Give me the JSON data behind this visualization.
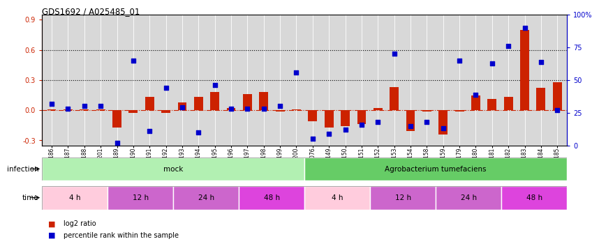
{
  "title": "GDS1692 / A025485_01",
  "samples": [
    "GSM94186",
    "GSM94187",
    "GSM94188",
    "GSM94201",
    "GSM94189",
    "GSM94190",
    "GSM94191",
    "GSM94192",
    "GSM94193",
    "GSM94194",
    "GSM94195",
    "GSM94196",
    "GSM94197",
    "GSM94198",
    "GSM94199",
    "GSM94200",
    "GSM94076",
    "GSM94149",
    "GSM94150",
    "GSM94151",
    "GSM94152",
    "GSM94153",
    "GSM94154",
    "GSM94158",
    "GSM94159",
    "GSM94179",
    "GSM94180",
    "GSM94181",
    "GSM94182",
    "GSM94183",
    "GSM94184",
    "GSM94185"
  ],
  "log2_ratio": [
    0.01,
    0.01,
    0.01,
    0.01,
    -0.17,
    -0.03,
    0.13,
    -0.03,
    0.08,
    0.13,
    0.18,
    0.02,
    0.16,
    0.18,
    -0.01,
    0.01,
    -0.11,
    -0.17,
    -0.16,
    -0.14,
    0.02,
    0.23,
    -0.21,
    -0.01,
    -0.24,
    -0.01,
    0.15,
    0.11,
    0.13,
    0.8,
    0.22,
    0.28
  ],
  "percentile_rank": [
    32,
    28,
    30,
    30,
    2,
    65,
    11,
    44,
    29,
    10,
    46,
    28,
    28,
    28,
    30,
    56,
    5,
    9,
    12,
    16,
    18,
    70,
    15,
    18,
    13,
    65,
    39,
    63,
    76,
    90,
    64,
    27
  ],
  "infection_groups": [
    {
      "label": "mock",
      "start": 0,
      "end": 16,
      "color": "#b2f0b2"
    },
    {
      "label": "Agrobacterium tumefaciens",
      "start": 16,
      "end": 32,
      "color": "#66cc66"
    }
  ],
  "time_groups": [
    {
      "label": "4 h",
      "start": 0,
      "end": 4,
      "color": "#ffccdd"
    },
    {
      "label": "12 h",
      "start": 4,
      "end": 8,
      "color": "#cc66cc"
    },
    {
      "label": "24 h",
      "start": 8,
      "end": 12,
      "color": "#cc66cc"
    },
    {
      "label": "48 h",
      "start": 12,
      "end": 16,
      "color": "#dd44dd"
    },
    {
      "label": "4 h",
      "start": 16,
      "end": 20,
      "color": "#ffccdd"
    },
    {
      "label": "12 h",
      "start": 20,
      "end": 24,
      "color": "#cc66cc"
    },
    {
      "label": "24 h",
      "start": 24,
      "end": 28,
      "color": "#cc66cc"
    },
    {
      "label": "48 h",
      "start": 28,
      "end": 32,
      "color": "#dd44dd"
    }
  ],
  "ylim_left": [
    -0.35,
    0.95
  ],
  "ylim_right": [
    0,
    100
  ],
  "left_ticks": [
    -0.3,
    0.0,
    0.3,
    0.6,
    0.9
  ],
  "right_ticks": [
    0,
    25,
    50,
    75,
    100
  ],
  "bar_color": "#cc2200",
  "scatter_color": "#0000cc",
  "bg_color": "#d8d8d8",
  "hline_color": "#cc2200",
  "dotline_color": "black"
}
